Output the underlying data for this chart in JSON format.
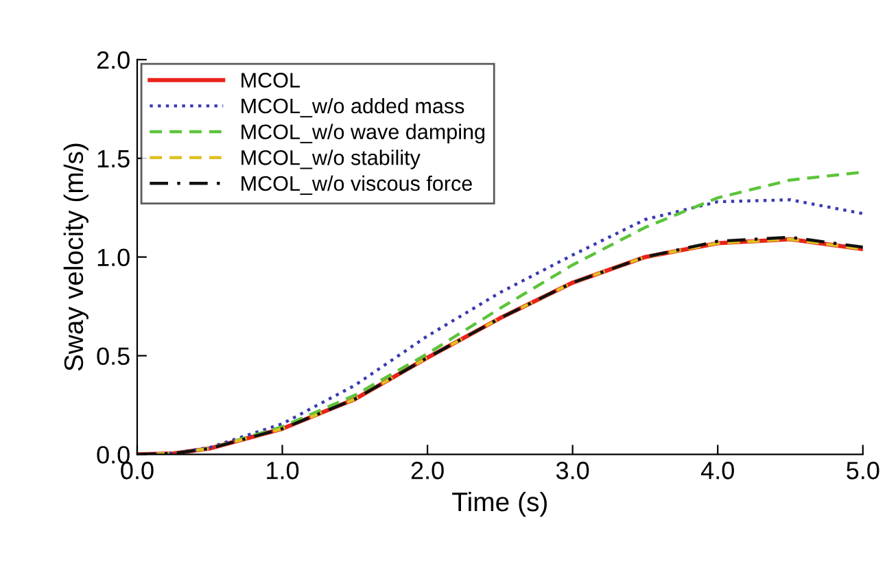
{
  "chart_data": {
    "type": "line",
    "xlabel": "Time (s)",
    "ylabel": "Sway velocity (m/s)",
    "x": [
      0,
      0.25,
      0.5,
      1.0,
      1.5,
      2.0,
      2.5,
      3.0,
      3.5,
      4.0,
      4.5,
      5.0
    ],
    "series": [
      {
        "name": "MCOL",
        "color": "#e8231c",
        "line_style": "solid",
        "values": [
          0,
          0.005,
          0.03,
          0.13,
          0.28,
          0.49,
          0.69,
          0.87,
          1.0,
          1.07,
          1.09,
          1.04
        ]
      },
      {
        "name": "MCOL_w/o added mass",
        "color": "#3a3ab0",
        "line_style": "dotted",
        "values": [
          0,
          0.006,
          0.035,
          0.155,
          0.35,
          0.6,
          0.82,
          1.01,
          1.19,
          1.28,
          1.29,
          1.22
        ]
      },
      {
        "name": "MCOL_w/o wave damping",
        "color": "#5cc43a",
        "line_style": "dashed",
        "values": [
          0,
          0.005,
          0.03,
          0.14,
          0.3,
          0.51,
          0.74,
          0.96,
          1.15,
          1.3,
          1.39,
          1.43
        ]
      },
      {
        "name": "MCOL_w/o stability",
        "color": "#e0c020",
        "line_style": "dashed",
        "values": [
          0,
          0.005,
          0.03,
          0.13,
          0.28,
          0.49,
          0.69,
          0.87,
          1.0,
          1.07,
          1.09,
          1.04
        ]
      },
      {
        "name": "MCOL_w/o viscous force",
        "color": "#111111",
        "line_style": "dashdot",
        "values": [
          0,
          0.005,
          0.03,
          0.13,
          0.28,
          0.49,
          0.69,
          0.87,
          1.0,
          1.08,
          1.1,
          1.05
        ]
      }
    ],
    "xlim": [
      0,
      5
    ],
    "ylim": [
      0,
      2
    ],
    "xticks": [
      {
        "value": 0,
        "label": "0.0"
      },
      {
        "value": 1,
        "label": "1.0"
      },
      {
        "value": 2,
        "label": "2.0"
      },
      {
        "value": 3,
        "label": "3.0"
      },
      {
        "value": 4,
        "label": "4.0"
      },
      {
        "value": 5,
        "label": "5.0"
      }
    ],
    "yticks": [
      {
        "value": 0,
        "label": "0.0"
      },
      {
        "value": 0.5,
        "label": "0.5"
      },
      {
        "value": 1.0,
        "label": "1.0"
      },
      {
        "value": 1.5,
        "label": "1.5"
      },
      {
        "value": 2.0,
        "label": "2.0"
      }
    ],
    "grid": false,
    "legend": "top left",
    "marker": "none"
  }
}
